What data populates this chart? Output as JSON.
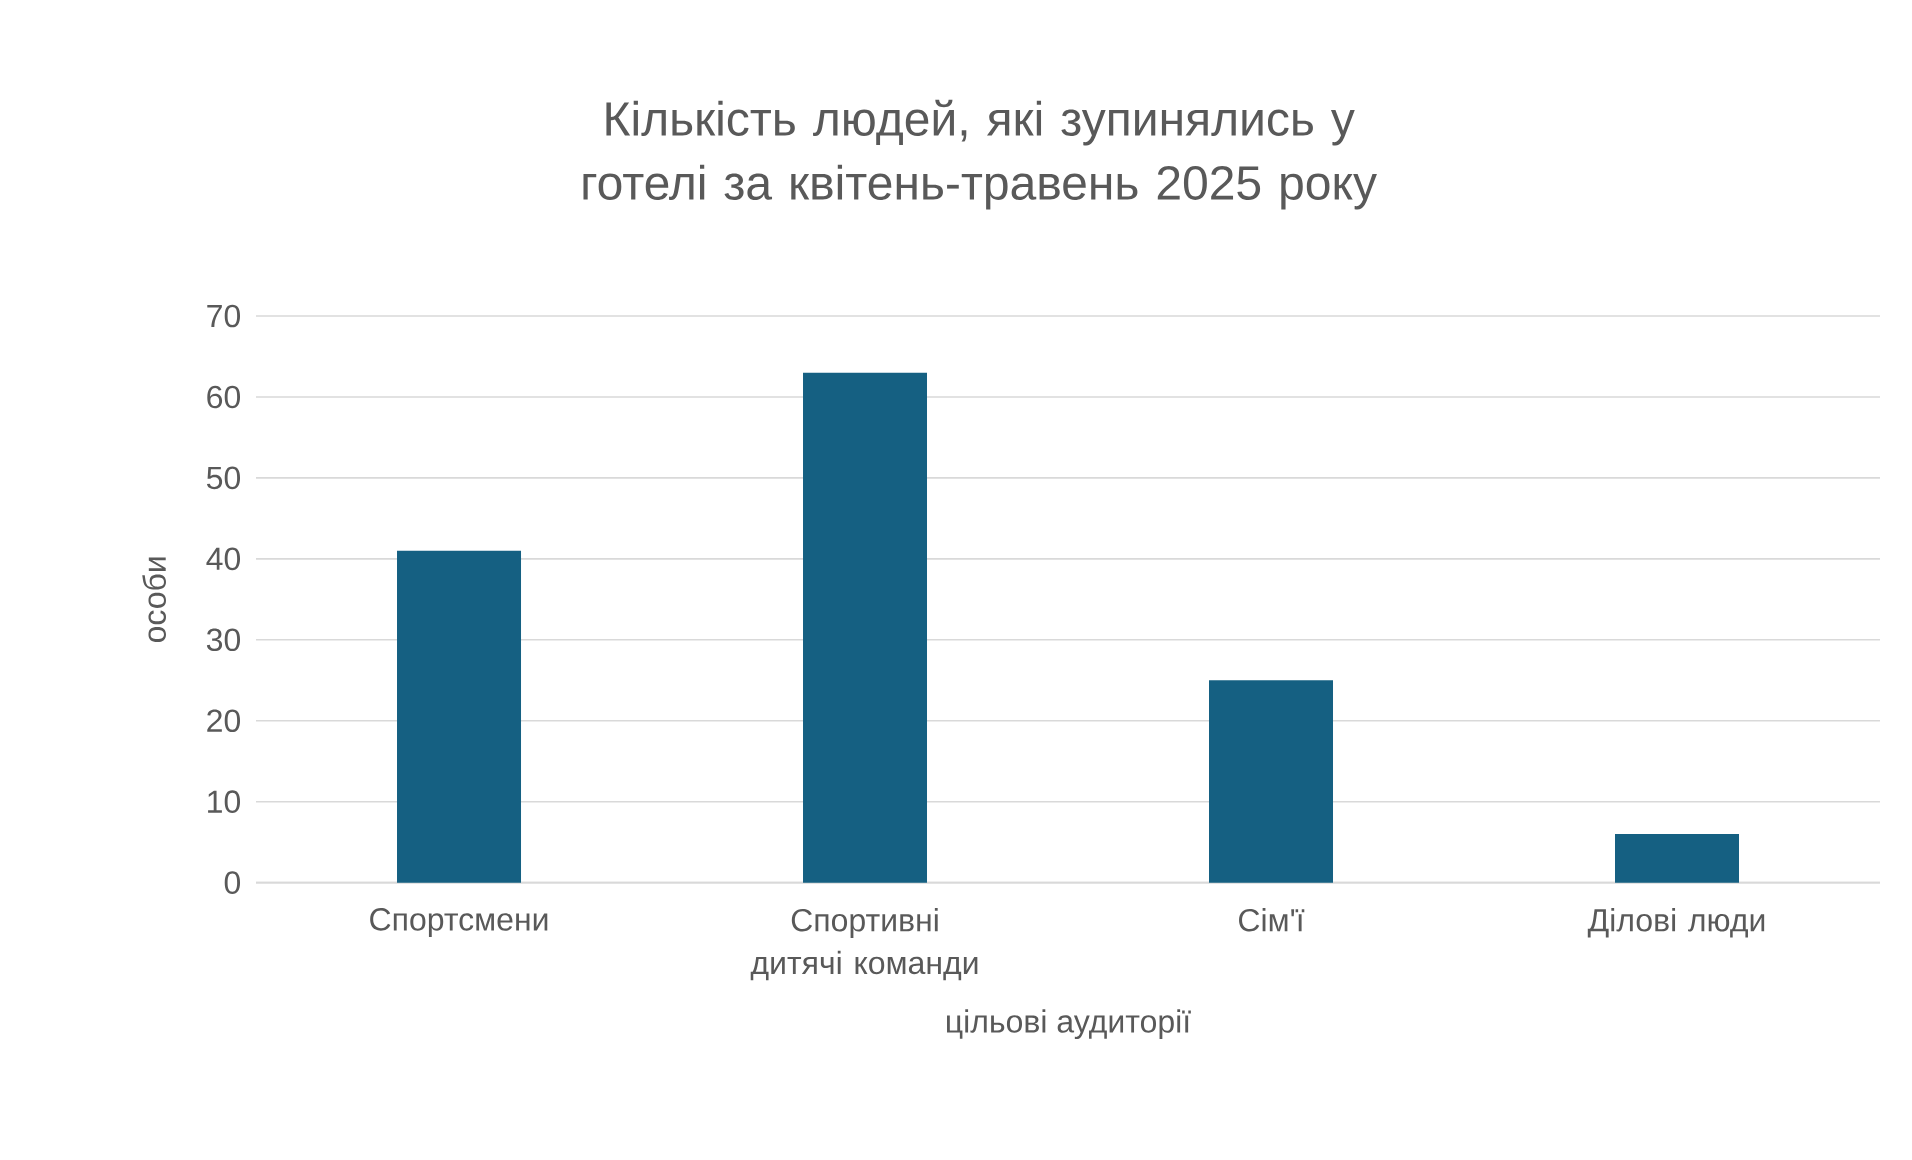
{
  "chart_data": {
    "type": "bar",
    "title": "Кількість людей, які зупинялись у готелі за квітень-травень 2025 року",
    "xlabel": "цільові аудиторії",
    "ylabel": "особи",
    "categories": [
      "Спортсмени",
      "Спортивні дитячі команди",
      "Сім'ї",
      "Ділові люди"
    ],
    "values": [
      41,
      63,
      25,
      6
    ],
    "color": "#156082",
    "ylim": [
      0,
      70
    ],
    "yticks": [
      0,
      10,
      20,
      30,
      40,
      50,
      60,
      70
    ],
    "grid": "y"
  }
}
